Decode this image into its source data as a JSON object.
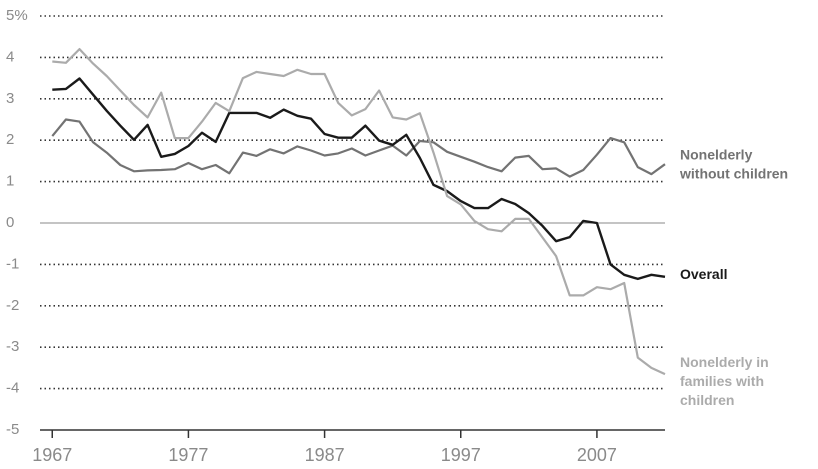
{
  "chart_data": {
    "type": "line",
    "x": [
      1967,
      1968,
      1969,
      1970,
      1971,
      1972,
      1973,
      1974,
      1975,
      1976,
      1977,
      1978,
      1979,
      1980,
      1981,
      1982,
      1983,
      1984,
      1985,
      1986,
      1987,
      1988,
      1989,
      1990,
      1991,
      1992,
      1993,
      1994,
      1995,
      1996,
      1997,
      1998,
      1999,
      2000,
      2001,
      2002,
      2003,
      2004,
      2005,
      2006,
      2007,
      2008,
      2009,
      2010,
      2011,
      2012
    ],
    "series": [
      {
        "name": "Nonelderly without children",
        "color": "#737373",
        "values": [
          2.1,
          2.5,
          2.45,
          1.95,
          1.7,
          1.4,
          1.25,
          1.27,
          1.28,
          1.3,
          1.45,
          1.3,
          1.4,
          1.2,
          1.7,
          1.62,
          1.78,
          1.68,
          1.85,
          1.75,
          1.63,
          1.68,
          1.8,
          1.63,
          1.75,
          1.87,
          1.63,
          1.98,
          1.95,
          1.72,
          1.6,
          1.48,
          1.35,
          1.25,
          1.58,
          1.62,
          1.3,
          1.32,
          1.12,
          1.28,
          1.65,
          2.05,
          1.95,
          1.35,
          1.18,
          1.42
        ]
      },
      {
        "name": "Overall",
        "color": "#1a1a1a",
        "values": [
          3.22,
          3.24,
          3.49,
          3.1,
          2.71,
          2.35,
          2.01,
          2.37,
          1.6,
          1.67,
          1.86,
          2.18,
          1.96,
          2.66,
          2.66,
          2.66,
          2.54,
          2.74,
          2.59,
          2.52,
          2.15,
          2.06,
          2.06,
          2.35,
          1.99,
          1.89,
          2.13,
          1.57,
          0.92,
          0.77,
          0.53,
          0.36,
          0.36,
          0.58,
          0.46,
          0.24,
          -0.07,
          -0.44,
          -0.34,
          0.05,
          0,
          -1.0,
          -1.25,
          -1.35,
          -1.25,
          -1.3
        ]
      },
      {
        "name": "Nonelderly in families with children",
        "color": "#ababab",
        "values": [
          3.9,
          3.87,
          4.2,
          3.85,
          3.55,
          3.2,
          2.85,
          2.55,
          3.15,
          2.05,
          2.05,
          2.45,
          2.9,
          2.7,
          3.5,
          3.65,
          3.6,
          3.55,
          3.7,
          3.6,
          3.6,
          2.9,
          2.6,
          2.75,
          3.2,
          2.55,
          2.5,
          2.65,
          1.7,
          0.65,
          0.45,
          0.05,
          -0.15,
          -0.2,
          0.1,
          0.1,
          -0.35,
          -0.8,
          -1.75,
          -1.75,
          -1.55,
          -1.6,
          -1.45,
          -3.25,
          -3.5,
          -3.65
        ]
      }
    ],
    "xlim": [
      1966.1,
      2012
    ],
    "xticks": [
      1967,
      1977,
      1987,
      1997,
      2007
    ],
    "ylim": [
      -5,
      5
    ],
    "yticks": [
      -5,
      -4,
      -3,
      -2,
      -1,
      0,
      1,
      2,
      3,
      4,
      {
        "value": 5,
        "label": "5%"
      }
    ],
    "grid": true
  }
}
